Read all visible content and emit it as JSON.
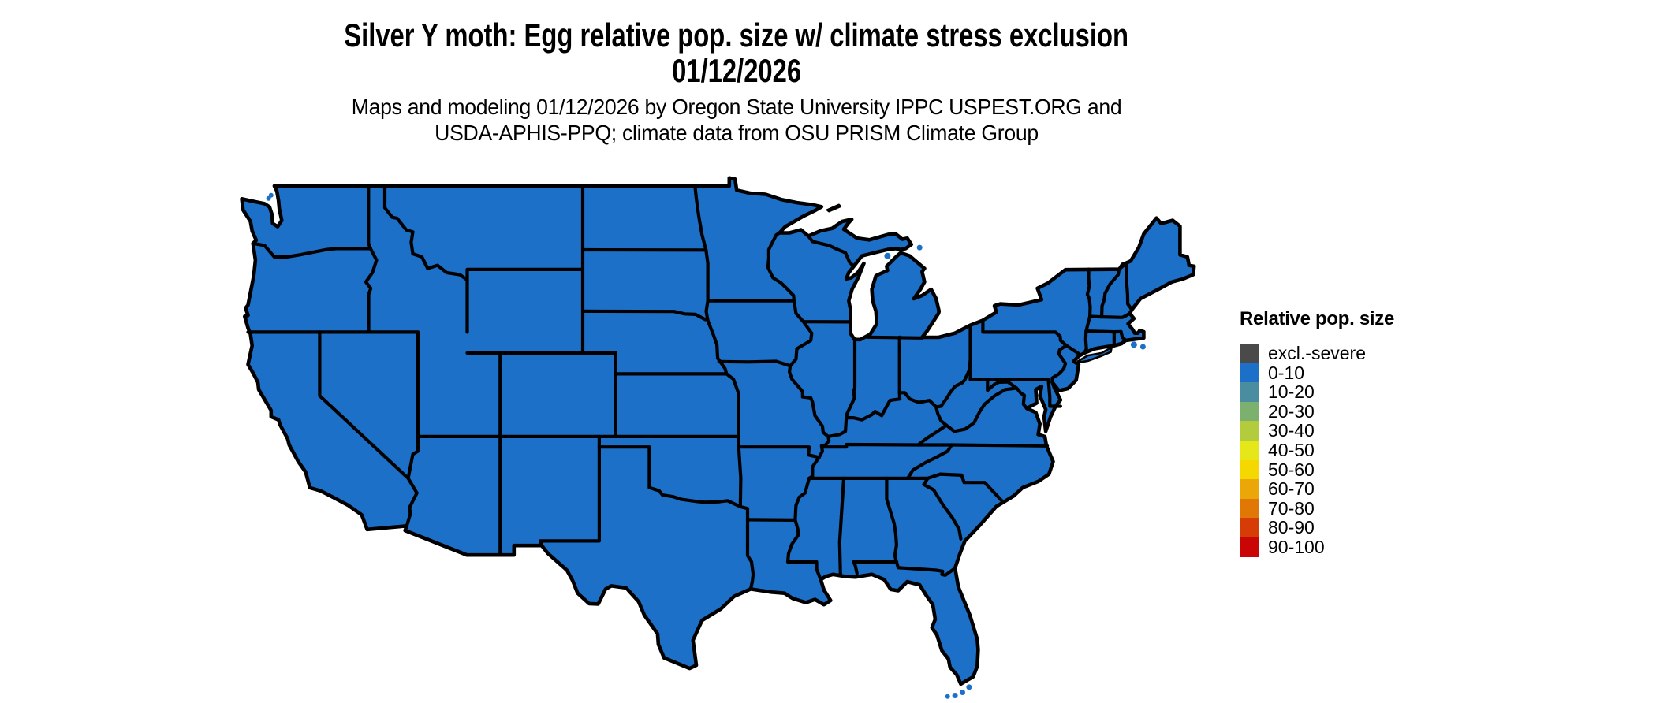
{
  "title": {
    "line1": "Silver Y moth: Egg relative pop. size w/ climate stress exclusion",
    "line2": "01/12/2026"
  },
  "subtitle": {
    "line1": "Maps and modeling 01/12/2026 by Oregon State University IPPC USPEST.ORG and",
    "line2": "USDA-APHIS-PPQ; climate data from OSU PRISM Climate Group"
  },
  "legend": {
    "title": "Relative pop. size",
    "items": [
      {
        "label": "excl.-severe",
        "color": "#4a4a4a"
      },
      {
        "label": "0-10",
        "color": "#1c70c8"
      },
      {
        "label": "10-20",
        "color": "#4a8da0"
      },
      {
        "label": "20-30",
        "color": "#7bb06e"
      },
      {
        "label": "30-40",
        "color": "#b3cc3e"
      },
      {
        "label": "40-50",
        "color": "#e6e718"
      },
      {
        "label": "50-60",
        "color": "#f5d800"
      },
      {
        "label": "60-70",
        "color": "#eba607"
      },
      {
        "label": "70-80",
        "color": "#e17806"
      },
      {
        "label": "80-90",
        "color": "#d63d06"
      },
      {
        "label": "90-100",
        "color": "#c90505"
      }
    ]
  },
  "map_data": {
    "type": "choropleth",
    "region": "contiguous-united-states",
    "classes": [
      "excl.-severe",
      "0-10",
      "10-20",
      "20-30",
      "30-40",
      "40-50",
      "50-60",
      "60-70",
      "70-80",
      "80-90",
      "90-100"
    ],
    "all_states_class": "0-10",
    "border_color": "#000000",
    "water_color": "#ffffff"
  }
}
